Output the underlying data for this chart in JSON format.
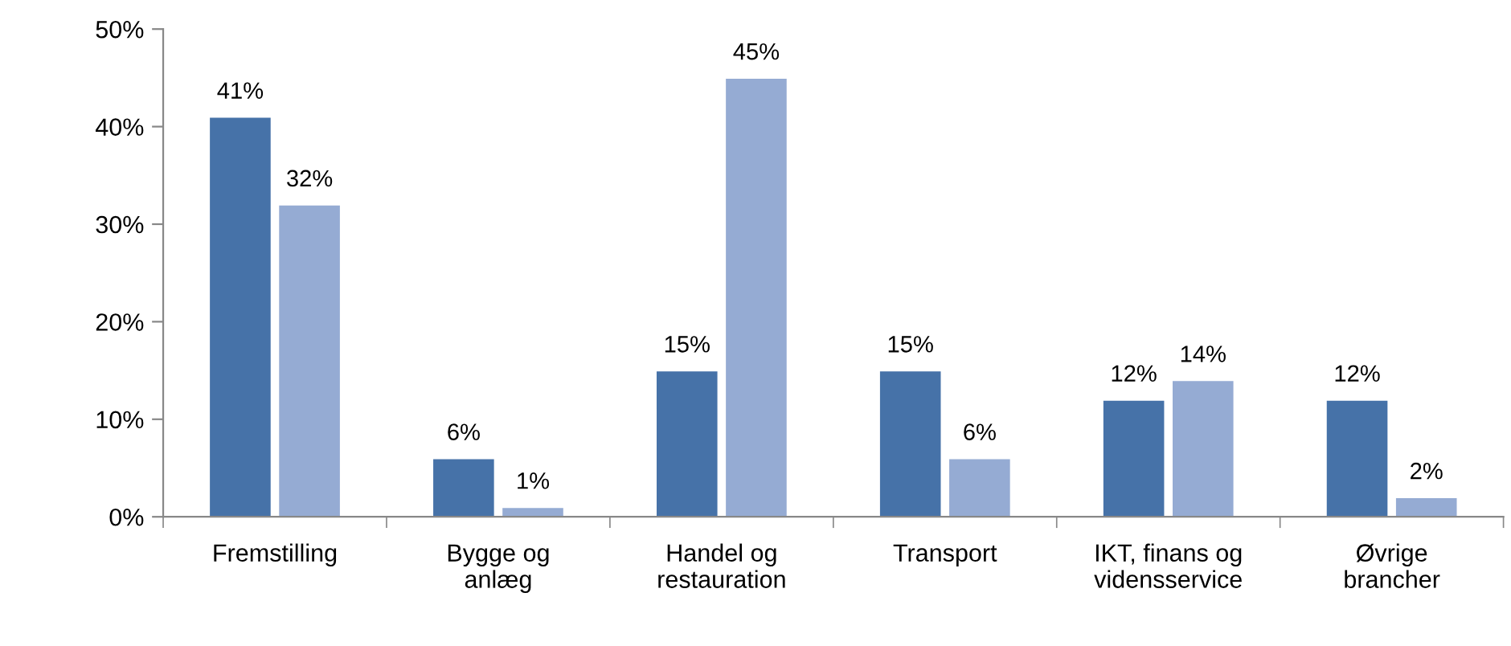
{
  "chart_data": {
    "type": "bar",
    "categories": [
      "Fremstilling",
      "Bygge og\nanlæg",
      "Handel og\nrestauration",
      "Transport",
      "IKT, finans og\nvidensservice",
      "Øvrige\nbrancher"
    ],
    "series": [
      {
        "color": "#4672a8",
        "values": [
          41,
          6,
          15,
          15,
          12,
          12
        ],
        "value_labels": [
          "41%",
          "6%",
          "15%",
          "15%",
          "12%",
          "12%"
        ]
      },
      {
        "color": "#95abd3",
        "values": [
          32,
          1,
          45,
          6,
          14,
          2
        ],
        "value_labels": [
          "32%",
          "1%",
          "45%",
          "6%",
          "14%",
          "2%"
        ]
      }
    ],
    "ylim": [
      0,
      50
    ],
    "yticks": [
      {
        "value": 0,
        "label": "0%"
      },
      {
        "value": 10,
        "label": "10%"
      },
      {
        "value": 20,
        "label": "20%"
      },
      {
        "value": 30,
        "label": "30%"
      },
      {
        "value": 40,
        "label": "40%"
      },
      {
        "value": 50,
        "label": "50%"
      }
    ],
    "grid": false,
    "legend": false
  }
}
